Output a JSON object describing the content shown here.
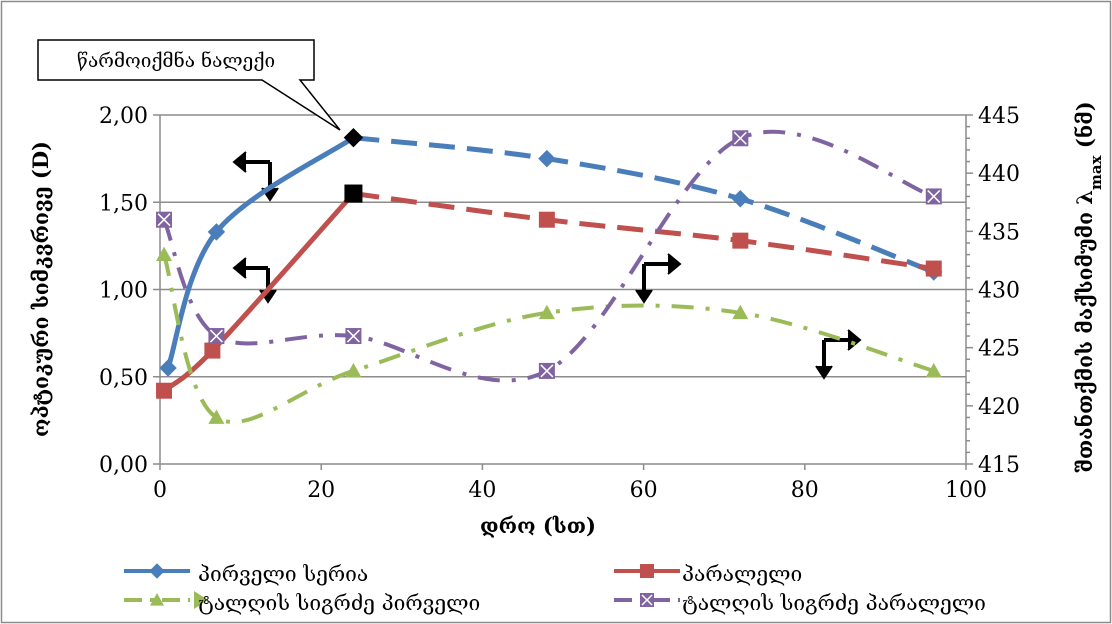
{
  "chart_data": {
    "type": "line",
    "xlabel": "დრო (სთ)",
    "ylabel": "ოპტიკური სიმკვრივე (D)",
    "y2label_main": "შთანთქმის მაქსიმუმი λ",
    "y2label_sub": "max",
    "y2label_unit": " (ნმ)",
    "xlim": [
      0,
      100
    ],
    "ylim": [
      0,
      2
    ],
    "y2lim": [
      415,
      445
    ],
    "x_ticks": [
      {
        "value": 0,
        "label": "0"
      },
      {
        "value": 20,
        "label": "20"
      },
      {
        "value": 40,
        "label": "40"
      },
      {
        "value": 60,
        "label": "60"
      },
      {
        "value": 80,
        "label": "80"
      },
      {
        "value": 100,
        "label": "100"
      }
    ],
    "y_ticks": [
      {
        "value": 0,
        "label": "0,00"
      },
      {
        "value": 0.5,
        "label": "0,50"
      },
      {
        "value": 1.0,
        "label": "1,00"
      },
      {
        "value": 1.5,
        "label": "1,50"
      },
      {
        "value": 2.0,
        "label": "2,00"
      }
    ],
    "y2_ticks": [
      {
        "value": 415,
        "label": "415"
      },
      {
        "value": 420,
        "label": "420"
      },
      {
        "value": 425,
        "label": "425"
      },
      {
        "value": 430,
        "label": "430"
      },
      {
        "value": 435,
        "label": "435"
      },
      {
        "value": 440,
        "label": "440"
      },
      {
        "value": 445,
        "label": "445"
      }
    ],
    "grid": true,
    "legend_position": "bottom",
    "annotation": "წარმოიქმნა ნალექი",
    "series": [
      {
        "name": "პირველი სერია",
        "axis": "left",
        "color": "#4a7ebb",
        "marker": "diamond",
        "x": [
          1,
          7,
          24,
          48,
          72,
          96
        ],
        "values": [
          0.55,
          1.33,
          1.87,
          1.75,
          1.52,
          1.1
        ]
      },
      {
        "name": "პარალელი",
        "axis": "left",
        "color": "#c0504d",
        "marker": "square",
        "x": [
          0.5,
          6.5,
          24,
          48,
          72,
          96
        ],
        "values": [
          0.42,
          0.65,
          1.55,
          1.4,
          1.28,
          1.12
        ]
      },
      {
        "name": "ტალღის სიგრძე პირველი",
        "axis": "right",
        "color": "#9bbb59",
        "marker": "triangle",
        "x": [
          0.5,
          7,
          24,
          48,
          72,
          96
        ],
        "values": [
          433,
          419,
          423,
          428,
          428,
          423
        ]
      },
      {
        "name": "ტალღის სიგრძე პარალელი",
        "axis": "right",
        "color": "#8064a2",
        "marker": "x-square",
        "x": [
          0.5,
          7,
          24,
          48,
          72,
          96
        ],
        "values": [
          436,
          426,
          426,
          423,
          443,
          438
        ]
      }
    ],
    "black_markers": [
      {
        "x": 24,
        "y": 1.87,
        "shape": "diamond"
      },
      {
        "x": 24,
        "y": 1.55,
        "shape": "square"
      }
    ]
  }
}
